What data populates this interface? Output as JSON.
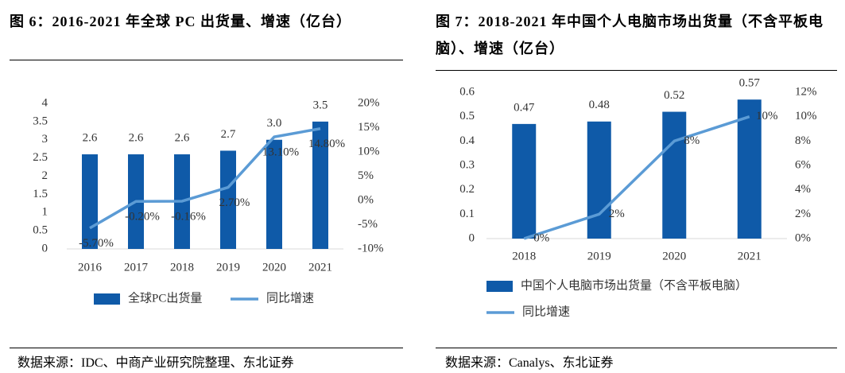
{
  "chart_data": [
    {
      "type": "bar",
      "title": "图 6：2016-2021 年全球 PC 出货量、增速（亿台）",
      "categories": [
        "2016",
        "2017",
        "2018",
        "2019",
        "2020",
        "2021"
      ],
      "series": [
        {
          "name": "全球PC出货量",
          "color": "#0f5aa8",
          "values": [
            2.6,
            2.6,
            2.6,
            2.7,
            3.0,
            3.5
          ],
          "value_labels": [
            "2.6",
            "2.6",
            "2.6",
            "2.7",
            "3.0",
            "3.5"
          ]
        },
        {
          "name": "同比增速",
          "type": "line",
          "axis": "y2",
          "color": "#5b9bd5",
          "values": [
            -5.7,
            -0.2,
            -0.16,
            2.7,
            13.1,
            14.8
          ],
          "value_labels": [
            "-5.70%",
            "-0.20%",
            "-0.16%",
            "2.70%",
            "13.10%",
            "14.80%"
          ]
        }
      ],
      "ylim": [
        0,
        4
      ],
      "yticks": [
        0,
        0.5,
        1,
        1.5,
        2,
        2.5,
        3,
        3.5,
        4
      ],
      "y2lim": [
        -10,
        20
      ],
      "y2ticks": [
        {
          "value": -10,
          "label": "-10%"
        },
        {
          "value": -5,
          "label": "-5%"
        },
        {
          "value": 0,
          "label": "0%"
        },
        {
          "value": 5,
          "label": "5%"
        },
        {
          "value": 10,
          "label": "10%"
        },
        {
          "value": 15,
          "label": "15%"
        },
        {
          "value": 20,
          "label": "20%"
        }
      ],
      "source": "数据来源：IDC、中商产业研究院整理、东北证券"
    },
    {
      "type": "bar",
      "title": "图 7：2018-2021 年中国个人电脑市场出货量（不含平板电脑）、增速（亿台）",
      "categories": [
        "2018",
        "2019",
        "2020",
        "2021"
      ],
      "series": [
        {
          "name": "中国个人电脑市场出货量（不含平板电脑）",
          "color": "#0f5aa8",
          "values": [
            0.47,
            0.48,
            0.52,
            0.57
          ]
        },
        {
          "name": "同比增速",
          "type": "line",
          "axis": "y2",
          "color": "#5b9bd5",
          "values": [
            0,
            2,
            8,
            10
          ],
          "value_labels": [
            "0%",
            "2%",
            "8%",
            "10%"
          ]
        }
      ],
      "ylim": [
        0,
        0.6
      ],
      "yticks": [
        0,
        0.1,
        0.2,
        0.3,
        0.4,
        0.5,
        0.6
      ],
      "y2lim": [
        0,
        12
      ],
      "y2ticks": [
        {
          "value": 0,
          "label": "0%"
        },
        {
          "value": 2,
          "label": "2%"
        },
        {
          "value": 4,
          "label": "4%"
        },
        {
          "value": 6,
          "label": "6%"
        },
        {
          "value": 8,
          "label": "8%"
        },
        {
          "value": 10,
          "label": "10%"
        },
        {
          "value": 12,
          "label": "12%"
        }
      ],
      "source": "数据来源：Canalys、东北证券"
    }
  ]
}
